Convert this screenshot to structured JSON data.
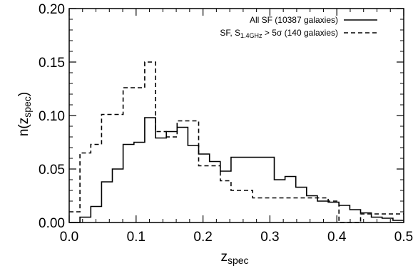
{
  "chart_data": {
    "type": "histogram-step",
    "xlabel": "z",
    "xlabel_sub": "spec",
    "ylabel": "n(z",
    "ylabel_sub": "spec",
    "ylabel_close": ")",
    "xlim": [
      0.0,
      0.5
    ],
    "ylim": [
      0.0,
      0.2
    ],
    "xticks": [
      0.0,
      0.1,
      0.2,
      0.3,
      0.4,
      0.5
    ],
    "yticks": [
      0.0,
      0.05,
      0.1,
      0.15,
      0.2
    ],
    "xtick_labels": [
      "0.0",
      "0.1",
      "0.2",
      "0.3",
      "0.4",
      "0.5"
    ],
    "ytick_labels": [
      "0.00",
      "0.05",
      "0.10",
      "0.15",
      "0.20"
    ],
    "legend_position": "top-right",
    "bin_edges": [
      0.0,
      0.0161,
      0.0323,
      0.0484,
      0.0645,
      0.0806,
      0.0968,
      0.1129,
      0.129,
      0.1452,
      0.1613,
      0.1774,
      0.1935,
      0.2097,
      0.2258,
      0.2419,
      0.2581,
      0.2742,
      0.2903,
      0.3065,
      0.3226,
      0.3387,
      0.3548,
      0.371,
      0.3871,
      0.4032,
      0.4194,
      0.4355,
      0.4516,
      0.4677,
      0.4839
    ],
    "series": [
      {
        "name": "All SF (10387 galaxies)",
        "style": "solid",
        "values": [
          0.0,
          0.005,
          0.015,
          0.038,
          0.05,
          0.073,
          0.075,
          0.098,
          0.079,
          0.085,
          0.089,
          0.072,
          0.064,
          0.057,
          0.048,
          0.061,
          0.061,
          0.061,
          0.061,
          0.04,
          0.043,
          0.033,
          0.025,
          0.02,
          0.019,
          0.016,
          0.012,
          0.009,
          0.005,
          0.004,
          0.002
        ]
      },
      {
        "name": "SF, S",
        "name_sub": "1.4GHz",
        "name_rest": " > 5σ (140 galaxies)",
        "style": "dashed",
        "values": [
          0.01,
          0.065,
          0.073,
          0.101,
          0.101,
          0.126,
          0.126,
          0.15,
          0.085,
          0.08,
          0.095,
          0.095,
          0.053,
          0.053,
          0.039,
          0.03,
          0.03,
          0.023,
          0.023,
          0.023,
          0.023,
          0.023,
          0.023,
          0.023,
          0.02,
          0.0,
          0.0,
          0.008,
          0.008,
          0.008,
          0.008
        ]
      }
    ]
  }
}
